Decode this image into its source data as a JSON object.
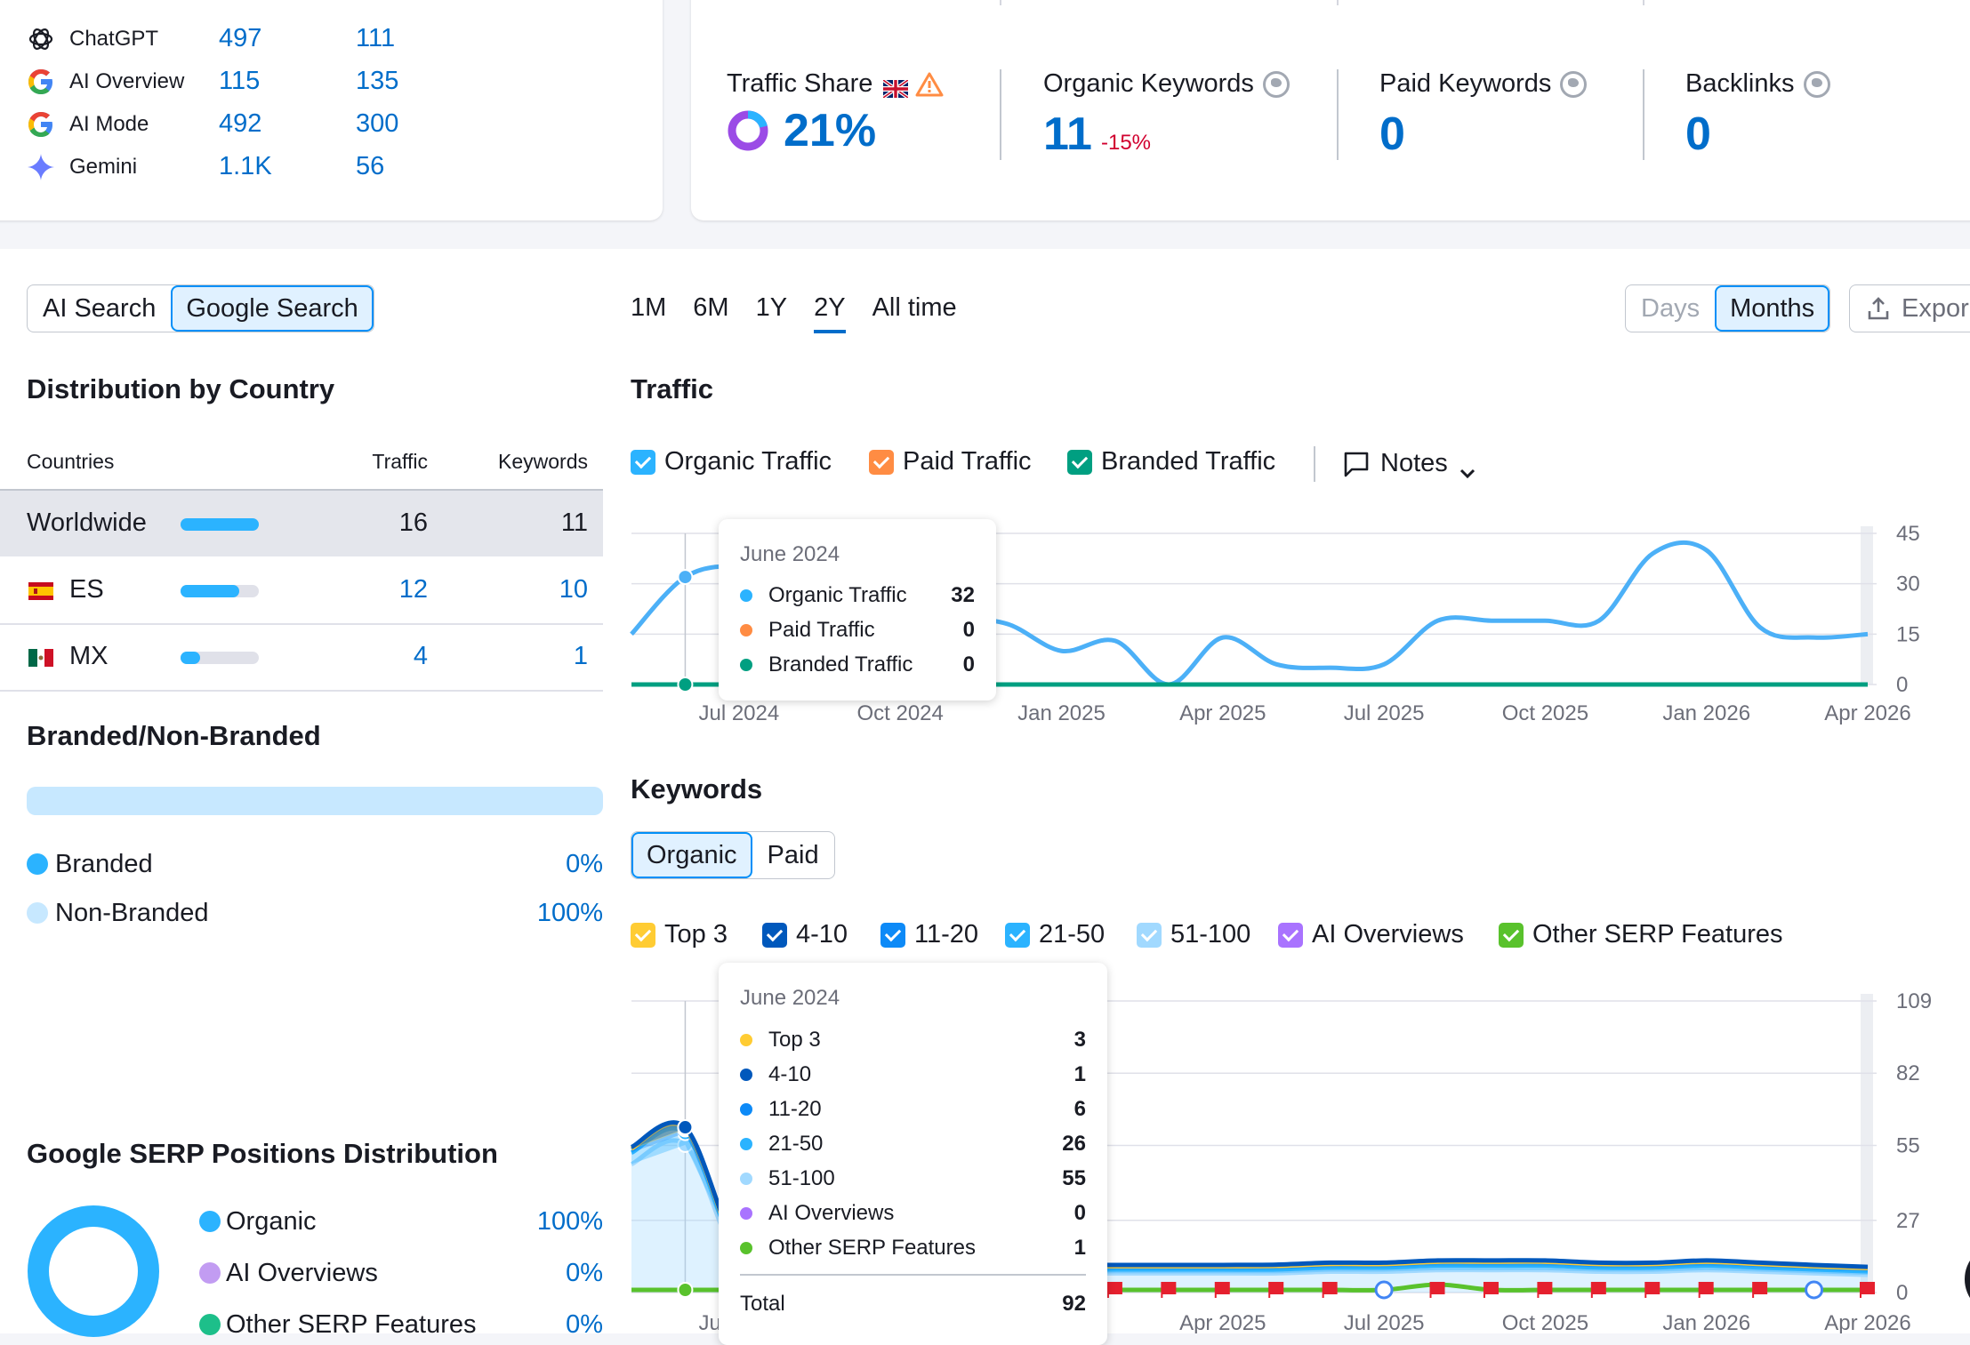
{
  "ai_visibility": {
    "rows": [
      {
        "name": "ChatGPT",
        "icon": "chatgpt-icon",
        "a": "497",
        "b": "111"
      },
      {
        "name": "AI Overview",
        "icon": "google-icon",
        "a": "115",
        "b": "135"
      },
      {
        "name": "AI Mode",
        "icon": "google-icon",
        "a": "492",
        "b": "300"
      },
      {
        "name": "Gemini",
        "icon": "gemini-icon",
        "a": "1.1K",
        "b": "56"
      }
    ]
  },
  "metrics": {
    "traffic_share": {
      "label": "Traffic Share",
      "value": "21%",
      "flag": "uk-flag-icon",
      "warning": "warning-icon",
      "share_fraction": 0.21
    },
    "organic_keywords": {
      "label": "Organic Keywords",
      "value": "11",
      "change": "-15%"
    },
    "paid_keywords": {
      "label": "Paid Keywords",
      "value": "0"
    },
    "backlinks": {
      "label": "Backlinks",
      "value": "0"
    }
  },
  "search_toggle": {
    "options": [
      "AI Search",
      "Google Search"
    ],
    "selected": "Google Search"
  },
  "time_ranges": {
    "options": [
      "1M",
      "6M",
      "1Y",
      "2Y",
      "All time"
    ],
    "selected": "2Y"
  },
  "granularity": {
    "options": [
      "Days",
      "Months"
    ],
    "selected": "Months"
  },
  "export_label": "Expor",
  "distribution": {
    "title": "Distribution by Country",
    "columns": [
      "Countries",
      "Traffic",
      "Keywords"
    ],
    "rows": [
      {
        "country": "Worldwide",
        "flag": "",
        "traffic": "16",
        "keywords": "11",
        "share": 1.0
      },
      {
        "country": "ES",
        "flag": "spain-flag-icon",
        "traffic": "12",
        "keywords": "10",
        "share": 0.75
      },
      {
        "country": "MX",
        "flag": "mexico-flag-icon",
        "traffic": "4",
        "keywords": "1",
        "share": 0.25
      }
    ]
  },
  "branded": {
    "title": "Branded/Non-Branded",
    "items": [
      {
        "label": "Branded",
        "value": "0%",
        "color": "#2bb3ff"
      },
      {
        "label": "Non-Branded",
        "value": "100%",
        "color": "#c7e8ff"
      }
    ]
  },
  "serp_dist": {
    "title": "Google SERP Positions Distribution",
    "items": [
      {
        "label": "Organic",
        "value": "100%",
        "color": "#2bb3ff"
      },
      {
        "label": "AI Overviews",
        "value": "0%",
        "color": "#c29cf2"
      },
      {
        "label": "Other SERP Features",
        "value": "0%",
        "color": "#1dbf8a"
      }
    ]
  },
  "traffic": {
    "title": "Traffic",
    "legend": [
      {
        "label": "Organic Traffic",
        "color": "#2bb3ff"
      },
      {
        "label": "Paid Traffic",
        "color": "#ff8c43"
      },
      {
        "label": "Branded Traffic",
        "color": "#009f81"
      }
    ],
    "notes_label": "Notes",
    "tooltip": {
      "date": "June 2024",
      "rows": [
        {
          "label": "Organic Traffic",
          "value": "32",
          "color": "#2bb3ff"
        },
        {
          "label": "Paid Traffic",
          "value": "0",
          "color": "#ff8c43"
        },
        {
          "label": "Branded Traffic",
          "value": "0",
          "color": "#009f81"
        }
      ]
    }
  },
  "keywords": {
    "title": "Keywords",
    "tabs": [
      "Organic",
      "Paid"
    ],
    "selected_tab": "Organic",
    "legend": [
      {
        "label": "Top 3",
        "color": "#ffcc33"
      },
      {
        "label": "4-10",
        "color": "#0058bc"
      },
      {
        "label": "11-20",
        "color": "#0d8af7"
      },
      {
        "label": "21-50",
        "color": "#2bb3ff"
      },
      {
        "label": "51-100",
        "color": "#a1d9ff"
      },
      {
        "label": "AI Overviews",
        "color": "#a973ff"
      },
      {
        "label": "Other SERP Features",
        "color": "#59c22c"
      }
    ],
    "tooltip": {
      "date": "June 2024",
      "rows": [
        {
          "label": "Top 3",
          "value": "3",
          "color": "#ffcc33"
        },
        {
          "label": "4-10",
          "value": "1",
          "color": "#0058bc"
        },
        {
          "label": "11-20",
          "value": "6",
          "color": "#0d8af7"
        },
        {
          "label": "21-50",
          "value": "26",
          "color": "#2bb3ff"
        },
        {
          "label": "51-100",
          "value": "55",
          "color": "#a1d9ff"
        },
        {
          "label": "AI Overviews",
          "value": "0",
          "color": "#a973ff"
        },
        {
          "label": "Other SERP Features",
          "value": "1",
          "color": "#59c22c"
        }
      ],
      "total_label": "Total",
      "total_value": "92"
    }
  },
  "chart_data": [
    {
      "type": "line",
      "title": "Traffic",
      "x": [
        "May 2024",
        "Jun 2024",
        "Jul 2024",
        "Aug 2024",
        "Sep 2024",
        "Oct 2024",
        "Nov 2024",
        "Dec 2024",
        "Jan 2025",
        "Feb 2025",
        "Mar 2025",
        "Apr 2025",
        "May 2025",
        "Jun 2025",
        "Jul 2025",
        "Aug 2025",
        "Sep 2025",
        "Oct 2025",
        "Nov 2025",
        "Dec 2025",
        "Jan 2026",
        "Feb 2026",
        "Mar 2026",
        "Apr 2026"
      ],
      "xticks": [
        "Jul 2024",
        "Oct 2024",
        "Jan 2025",
        "Apr 2025",
        "Jul 2025",
        "Oct 2025",
        "Jan 2026",
        "Apr 2026"
      ],
      "yticks": [
        0,
        15,
        30,
        45
      ],
      "ylim": [
        0,
        45
      ],
      "series": [
        {
          "name": "Organic Traffic",
          "color": "#4cb0f7",
          "values": [
            15,
            32,
            35,
            30,
            25,
            22,
            20,
            18,
            10,
            13,
            0,
            14,
            6,
            5,
            6,
            19,
            19,
            19,
            19,
            39,
            40,
            17,
            14,
            15
          ]
        },
        {
          "name": "Branded Traffic",
          "color": "#009f81",
          "values": [
            0,
            0,
            0,
            0,
            0,
            0,
            0,
            0,
            0,
            0,
            0,
            0,
            0,
            0,
            0,
            0,
            0,
            0,
            0,
            0,
            0,
            0,
            0,
            0
          ]
        }
      ]
    },
    {
      "type": "area",
      "title": "Keywords",
      "x": [
        "May 2024",
        "Jun 2024",
        "Jul 2024",
        "Aug 2024",
        "Sep 2024",
        "Oct 2024",
        "Nov 2024",
        "Dec 2024",
        "Jan 2025",
        "Feb 2025",
        "Mar 2025",
        "Apr 2025",
        "May 2025",
        "Jun 2025",
        "Jul 2025",
        "Aug 2025",
        "Sep 2025",
        "Oct 2025",
        "Nov 2025",
        "Dec 2025",
        "Jan 2026",
        "Feb 2026",
        "Mar 2026",
        "Apr 2026"
      ],
      "xticks": [
        "Jul 2024",
        "Oct 2024",
        "Jan 2025",
        "Apr 2025",
        "Jul 2025",
        "Oct 2025",
        "Jan 2026",
        "Apr 2026"
      ],
      "yticks": [
        0,
        27,
        55,
        82,
        109
      ],
      "ylim": [
        0,
        109
      ],
      "series": [
        {
          "name": "51-100",
          "color": "#a1d9ff",
          "values": [
            80,
            92,
            20,
            18,
            16,
            14,
            13,
            12,
            12,
            12,
            12,
            12,
            12,
            13,
            13,
            14,
            14,
            14,
            13,
            13,
            14,
            13,
            12,
            11
          ]
        },
        {
          "name": "21-50",
          "color": "#2bb3ff",
          "values": [
            36,
            37,
            18,
            16,
            15,
            14,
            13,
            12,
            12,
            12,
            12,
            12,
            12,
            13,
            13,
            14,
            14,
            14,
            13,
            13,
            14,
            13,
            12,
            11
          ]
        },
        {
          "name": "11-20",
          "color": "#0d8af7",
          "values": [
            10,
            11,
            10,
            9,
            9,
            9,
            9,
            9,
            9,
            9,
            9,
            9,
            10,
            10,
            10,
            11,
            11,
            11,
            10,
            10,
            11,
            10,
            9,
            9
          ]
        },
        {
          "name": "4-10",
          "color": "#0058bc",
          "values": [
            4,
            4,
            4,
            4,
            4,
            4,
            4,
            4,
            4,
            4,
            4,
            4,
            4,
            4,
            4,
            4,
            4,
            4,
            4,
            4,
            4,
            4,
            4,
            4
          ]
        },
        {
          "name": "Top 3",
          "color": "#ffcc33",
          "values": [
            3,
            3,
            1,
            1,
            1,
            1,
            1,
            1,
            1,
            1,
            1,
            1,
            1,
            1,
            1,
            1,
            1,
            1,
            1,
            1,
            1,
            1,
            1,
            1
          ]
        },
        {
          "name": "Other SERP Features",
          "color": "#59c22c",
          "values": [
            1,
            1,
            1,
            1,
            1,
            1,
            1,
            1,
            1,
            1,
            1,
            1,
            1,
            1,
            1,
            3,
            1,
            1,
            1,
            1,
            1,
            1,
            1,
            1
          ]
        }
      ]
    }
  ]
}
